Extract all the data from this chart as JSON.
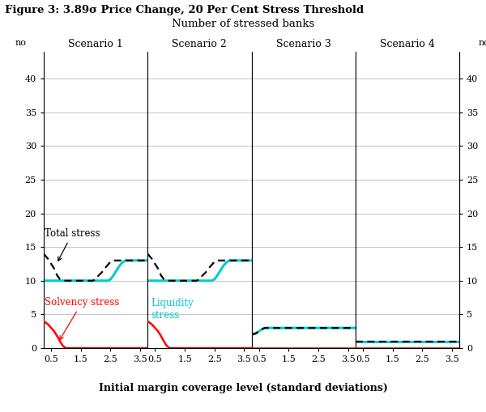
{
  "title": "Figure 3: 3.89σ Price Change, 20 Per Cent Stress Threshold",
  "subtitle": "Number of stressed banks",
  "xlabel": "Initial margin coverage level (standard deviations)",
  "ylabel_left": "no",
  "ylabel_right": "no",
  "ylim": [
    0,
    44
  ],
  "yticks": [
    0,
    5,
    10,
    15,
    20,
    25,
    30,
    35,
    40
  ],
  "xlim": [
    0.25,
    3.75
  ],
  "xticks": [
    0.5,
    1.5,
    2.5,
    3.5
  ],
  "xticklabels": [
    "0.5",
    "1.5",
    "2.5",
    "3.5"
  ],
  "scenarios": [
    "Scenario 1",
    "Scenario 2",
    "Scenario 3",
    "Scenario 4"
  ],
  "total_stress_color": "#000000",
  "liquidity_stress_color": "#00cccc",
  "solvency_stress_color": "#ff0000",
  "background_color": "#ffffff",
  "scenario1": {
    "x": [
      0.25,
      0.4,
      0.5,
      0.6,
      0.7,
      0.8,
      0.9,
      1.0,
      1.1,
      1.2,
      1.3,
      1.4,
      1.5,
      1.6,
      1.7,
      1.8,
      1.9,
      2.0,
      2.1,
      2.2,
      2.3,
      2.4,
      2.5,
      2.6,
      2.7,
      2.8,
      2.9,
      3.0,
      3.1,
      3.2,
      3.3,
      3.4,
      3.5,
      3.6,
      3.75
    ],
    "total": [
      14.0,
      13.2,
      12.5,
      11.8,
      10.8,
      10.2,
      10.0,
      10.0,
      10.0,
      10.0,
      10.0,
      10.0,
      10.0,
      10.0,
      10.0,
      10.0,
      10.0,
      10.2,
      10.8,
      11.2,
      11.8,
      12.3,
      12.8,
      13.0,
      13.0,
      13.0,
      13.0,
      13.0,
      13.0,
      13.0,
      13.0,
      13.0,
      13.0,
      13.0,
      13.0
    ],
    "liquidity": [
      10.0,
      10.0,
      10.0,
      10.0,
      10.0,
      10.0,
      10.0,
      10.0,
      10.0,
      10.0,
      10.0,
      10.0,
      10.0,
      10.0,
      10.0,
      10.0,
      10.0,
      10.0,
      10.0,
      10.0,
      10.0,
      10.0,
      10.2,
      10.8,
      11.5,
      12.2,
      12.7,
      13.0,
      13.0,
      13.0,
      13.0,
      13.0,
      13.0,
      13.0,
      13.0
    ],
    "solvency": [
      4.0,
      3.5,
      3.0,
      2.5,
      1.8,
      1.0,
      0.3,
      0.0,
      0.0,
      0.0,
      0.0,
      0.0,
      0.0,
      0.0,
      0.0,
      0.0,
      0.0,
      0.0,
      0.0,
      0.0,
      0.0,
      0.0,
      0.0,
      0.0,
      0.0,
      0.0,
      0.0,
      0.0,
      0.0,
      0.0,
      0.0,
      0.0,
      0.0,
      0.0,
      0.0
    ]
  },
  "scenario2": {
    "x": [
      0.25,
      0.4,
      0.5,
      0.6,
      0.7,
      0.8,
      0.9,
      1.0,
      1.1,
      1.2,
      1.3,
      1.4,
      1.5,
      1.6,
      1.7,
      1.8,
      1.9,
      2.0,
      2.1,
      2.2,
      2.3,
      2.4,
      2.5,
      2.6,
      2.7,
      2.8,
      2.9,
      3.0,
      3.1,
      3.2,
      3.3,
      3.4,
      3.5,
      3.6,
      3.75
    ],
    "total": [
      14.0,
      13.2,
      12.5,
      11.8,
      10.8,
      10.2,
      10.0,
      10.0,
      10.0,
      10.0,
      10.0,
      10.0,
      10.0,
      10.0,
      10.0,
      10.0,
      10.0,
      10.2,
      10.8,
      11.2,
      11.8,
      12.3,
      12.8,
      13.0,
      13.0,
      13.0,
      13.0,
      13.0,
      13.0,
      13.0,
      13.0,
      13.0,
      13.0,
      13.0,
      13.0
    ],
    "liquidity": [
      10.0,
      10.0,
      10.0,
      10.0,
      10.0,
      10.0,
      10.0,
      10.0,
      10.0,
      10.0,
      10.0,
      10.0,
      10.0,
      10.0,
      10.0,
      10.0,
      10.0,
      10.0,
      10.0,
      10.0,
      10.0,
      10.0,
      10.2,
      10.8,
      11.5,
      12.2,
      12.7,
      13.0,
      13.0,
      13.0,
      13.0,
      13.0,
      13.0,
      13.0,
      13.0
    ],
    "solvency": [
      4.0,
      3.5,
      3.0,
      2.5,
      1.8,
      1.0,
      0.3,
      0.0,
      0.0,
      0.0,
      0.0,
      0.0,
      0.0,
      0.0,
      0.0,
      0.0,
      0.0,
      0.0,
      0.0,
      0.0,
      0.0,
      0.0,
      0.0,
      0.0,
      0.0,
      0.0,
      0.0,
      0.0,
      0.0,
      0.0,
      0.0,
      0.0,
      0.0,
      0.0,
      0.0
    ]
  },
  "scenario3": {
    "x": [
      0.25,
      0.4,
      0.5,
      0.6,
      0.7,
      0.8,
      0.9,
      1.0,
      1.25,
      1.5,
      1.75,
      2.0,
      2.25,
      2.5,
      2.75,
      3.0,
      3.25,
      3.5,
      3.75
    ],
    "total": [
      2.0,
      2.2,
      2.5,
      2.8,
      3.0,
      3.0,
      3.0,
      3.0,
      3.0,
      3.0,
      3.0,
      3.0,
      3.0,
      3.0,
      3.0,
      3.0,
      3.0,
      3.0,
      3.0
    ],
    "liquidity": [
      2.0,
      2.2,
      2.5,
      2.8,
      3.0,
      3.0,
      3.0,
      3.0,
      3.0,
      3.0,
      3.0,
      3.0,
      3.0,
      3.0,
      3.0,
      3.0,
      3.0,
      3.0,
      3.0
    ],
    "solvency": [
      0.0,
      0.0,
      0.0,
      0.0,
      0.0,
      0.0,
      0.0,
      0.0,
      0.0,
      0.0,
      0.0,
      0.0,
      0.0,
      0.0,
      0.0,
      0.0,
      0.0,
      0.0,
      0.0
    ]
  },
  "scenario4": {
    "x": [
      0.25,
      0.5,
      0.75,
      1.0,
      1.25,
      1.5,
      1.75,
      2.0,
      2.25,
      2.5,
      2.75,
      3.0,
      3.25,
      3.5,
      3.75
    ],
    "total": [
      1.0,
      1.0,
      1.0,
      1.0,
      1.0,
      1.0,
      1.0,
      1.0,
      1.0,
      1.0,
      1.0,
      1.0,
      1.0,
      1.0,
      1.0
    ],
    "liquidity": [
      1.0,
      1.0,
      1.0,
      1.0,
      1.0,
      1.0,
      1.0,
      1.0,
      1.0,
      1.0,
      1.0,
      1.0,
      1.0,
      1.0,
      1.0
    ],
    "solvency": [
      0.0,
      0.0,
      0.0,
      0.0,
      0.0,
      0.0,
      0.0,
      0.0,
      0.0,
      0.0,
      0.0,
      0.0,
      0.0,
      0.0,
      0.0
    ]
  }
}
